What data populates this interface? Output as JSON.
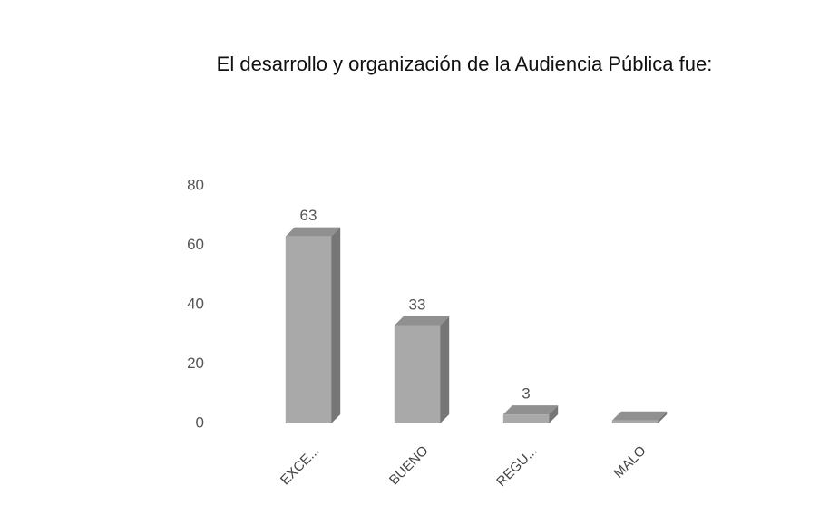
{
  "chart_data": {
    "type": "bar3d",
    "title": "El desarrollo y organización de la Audiencia Pública fue:",
    "categories": [
      "EXCE...",
      "BUENO",
      "REGU...",
      "MALO"
    ],
    "values": [
      63,
      33,
      3,
      1
    ],
    "value_labels": [
      "63",
      "33",
      "3",
      null
    ],
    "color": "#a9a9a9",
    "ylim": [
      0,
      80
    ],
    "yticks": [
      0,
      20,
      40,
      60,
      80
    ],
    "grid": false
  }
}
